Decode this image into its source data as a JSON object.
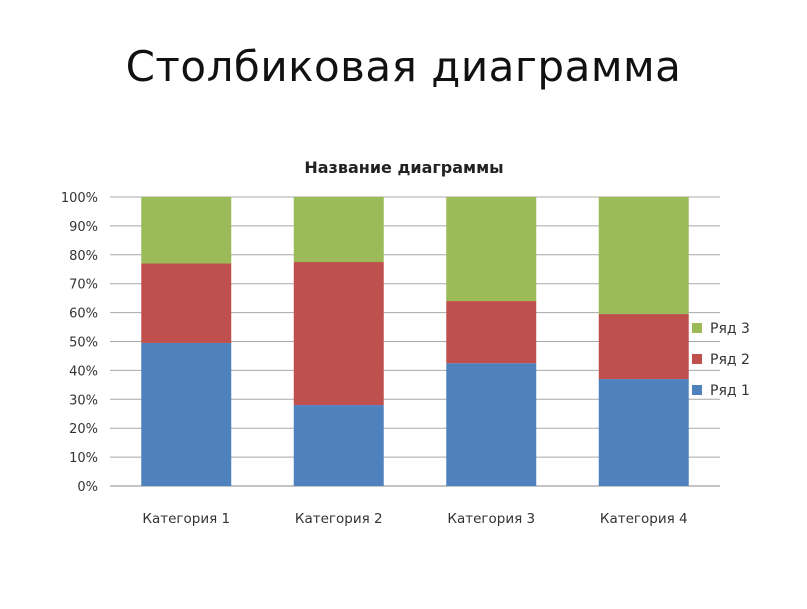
{
  "slide": {
    "title": "Столбиковая диаграмма"
  },
  "chart_data": {
    "type": "bar",
    "stacked": "percent",
    "title": "Название диаграммы",
    "categories": [
      "Категория 1",
      "Категория 2",
      "Категория 3",
      "Категория 4"
    ],
    "series": [
      {
        "name": "Ряд 1",
        "color": "#4F81BD",
        "values": [
          49.5,
          28,
          42.5,
          37
        ]
      },
      {
        "name": "Ряд 2",
        "color": "#C0504D",
        "values": [
          27.5,
          49.5,
          21.5,
          22.5
        ]
      },
      {
        "name": "Ряд 3",
        "color": "#9BBB59",
        "values": [
          23,
          22.5,
          36,
          40.5
        ]
      }
    ],
    "y_ticks": [
      "0%",
      "10%",
      "20%",
      "30%",
      "40%",
      "50%",
      "60%",
      "70%",
      "80%",
      "90%",
      "100%"
    ],
    "ylim": [
      0,
      100
    ],
    "grid": true,
    "legend": "right"
  }
}
